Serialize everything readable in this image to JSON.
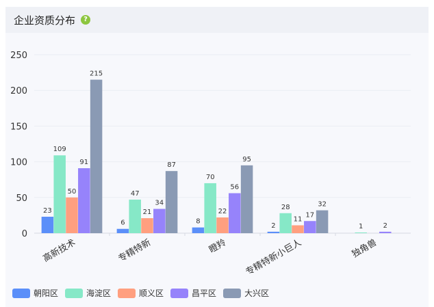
{
  "card": {
    "title": "企业资质分布",
    "help_symbol": "?"
  },
  "chart_data": {
    "type": "bar",
    "title": "",
    "xlabel": "",
    "ylabel": "",
    "ylim": [
      0,
      250
    ],
    "yticks": [
      0,
      50,
      100,
      150,
      200,
      250
    ],
    "categories": [
      "高新技术",
      "专精特新",
      "瞪羚",
      "专精特新小巨人",
      "独角兽"
    ],
    "series": [
      {
        "name": "朝阳区",
        "color": "#5b8ff9",
        "values": [
          23,
          6,
          8,
          2,
          0
        ]
      },
      {
        "name": "海淀区",
        "color": "#86e8c7",
        "values": [
          109,
          47,
          70,
          28,
          1
        ]
      },
      {
        "name": "顺义区",
        "color": "#ff9f7f",
        "values": [
          50,
          21,
          22,
          11,
          0
        ]
      },
      {
        "name": "昌平区",
        "color": "#9683fb",
        "values": [
          91,
          34,
          56,
          17,
          2
        ]
      },
      {
        "name": "大兴区",
        "color": "#8a9ab4",
        "values": [
          215,
          87,
          95,
          32,
          null
        ]
      }
    ],
    "grid": true,
    "legend_position": "bottom-left"
  }
}
